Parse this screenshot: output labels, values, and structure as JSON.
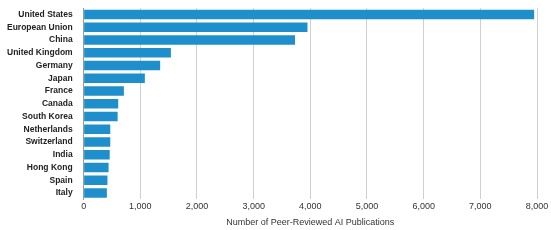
{
  "chart_data": {
    "type": "bar",
    "orientation": "horizontal",
    "x_label": "Number of Peer-Reviewed AI Publications",
    "categories": [
      "United States",
      "European Union",
      "China",
      "United Kingdom",
      "Germany",
      "Japan",
      "France",
      "Canada",
      "South Korea",
      "Netherlands",
      "Switzerland",
      "India",
      "Hong Kong",
      "Spain",
      "Italy"
    ],
    "values": [
      7950,
      3950,
      3730,
      1540,
      1350,
      1080,
      710,
      610,
      600,
      470,
      470,
      460,
      440,
      420,
      410
    ],
    "color": "#1f8fcc",
    "xlim": [
      0,
      8000
    ],
    "xticks": [
      0,
      {
        "value": 1000,
        "label": "1,000"
      },
      {
        "value": 2000,
        "label": "2,000"
      },
      {
        "value": 3000,
        "label": "3,000"
      },
      {
        "value": 4000,
        "label": "4,000"
      },
      {
        "value": 5000,
        "label": "5,000"
      },
      {
        "value": 6000,
        "label": "6,000"
      },
      {
        "value": 7000,
        "label": "7,000"
      },
      {
        "value": 8000,
        "label": "8,000"
      }
    ],
    "grid": true
  }
}
